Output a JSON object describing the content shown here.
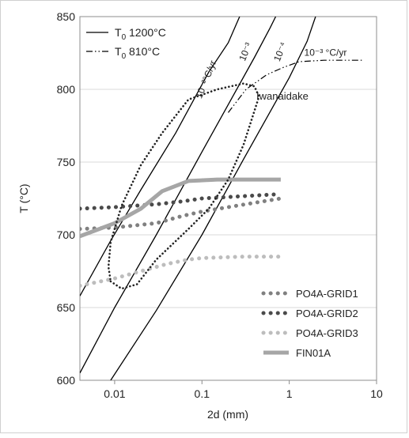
{
  "chart_data": {
    "type": "line",
    "xlabel": "2d (mm)",
    "ylabel": "T (°C)",
    "x_scale": "log",
    "xlim": [
      0.004,
      10
    ],
    "ylim": [
      600,
      850
    ],
    "x_ticks": [
      {
        "value": 0.01,
        "label": "0.01"
      },
      {
        "value": 0.1,
        "label": "0.1"
      },
      {
        "value": 1,
        "label": "1"
      },
      {
        "value": 10,
        "label": "10"
      }
    ],
    "y_ticks": [
      {
        "value": 600,
        "label": "600"
      },
      {
        "value": 650,
        "label": "650"
      },
      {
        "value": 700,
        "label": "700"
      },
      {
        "value": 750,
        "label": "750"
      },
      {
        "value": 800,
        "label": "800"
      },
      {
        "value": 850,
        "label": "850"
      }
    ],
    "grid": "y-major",
    "legend_top": [
      {
        "label_main": "T",
        "label_sub": "0",
        "label_rest": " 1200°C",
        "style": "solid"
      },
      {
        "label_main": "T",
        "label_sub": "0",
        "label_rest": " 810°C",
        "style": "dash-dot-dot"
      }
    ],
    "legend_bottom": [
      {
        "label": "PO4A-GRID1",
        "color": "#808080",
        "style": "dotted"
      },
      {
        "label": "PO4A-GRID2",
        "color": "#4a4a4a",
        "style": "dotted"
      },
      {
        "label": "PO4A-GRID3",
        "color": "#bdbdbd",
        "style": "dotted"
      },
      {
        "label": "FIN01A",
        "color": "#a6a6a6",
        "style": "thick"
      }
    ],
    "rate_labels": [
      {
        "text": "10⁻²°C/yr",
        "x": 0.12,
        "y": 806
      },
      {
        "text": "10⁻³",
        "x": 0.34,
        "y": 825
      },
      {
        "text": "10⁻⁴",
        "x": 0.85,
        "y": 825
      },
      {
        "text": "10⁻³ °C/yr",
        "x": 2.6,
        "y": 823
      }
    ],
    "annotation": {
      "text": "Iwanaidake",
      "x": 0.42,
      "y": 793
    },
    "series": [
      {
        "style": "solid",
        "points": [
          [
            0.004,
            658
          ],
          [
            0.009,
            696
          ],
          [
            0.02,
            731
          ],
          [
            0.05,
            770
          ],
          [
            0.12,
            812
          ],
          [
            0.2,
            832
          ],
          [
            0.27,
            850
          ]
        ]
      },
      {
        "style": "solid",
        "points": [
          [
            0.004,
            605
          ],
          [
            0.01,
            650
          ],
          [
            0.03,
            700
          ],
          [
            0.1,
            757
          ],
          [
            0.4,
            822
          ],
          [
            0.6,
            842
          ],
          [
            0.7,
            850
          ]
        ]
      },
      {
        "style": "solid",
        "points": [
          [
            0.009,
            600
          ],
          [
            0.03,
            648
          ],
          [
            0.1,
            700
          ],
          [
            0.3,
            752
          ],
          [
            1,
            808
          ],
          [
            1.6,
            833
          ],
          [
            2.0,
            850
          ]
        ]
      },
      {
        "style": "dash-dot-dot",
        "points": [
          [
            0.2,
            784
          ],
          [
            0.32,
            800
          ],
          [
            0.55,
            810
          ],
          [
            0.85,
            815
          ],
          [
            1.3,
            819
          ],
          [
            2.5,
            820
          ],
          [
            7,
            820
          ]
        ]
      },
      {
        "name": "PO4A-GRID1",
        "style": "dotted",
        "color": "#808080",
        "points": [
          [
            0.004,
            704
          ],
          [
            0.01,
            705
          ],
          [
            0.03,
            708
          ],
          [
            0.06,
            713
          ],
          [
            0.1,
            716
          ],
          [
            0.2,
            719
          ],
          [
            0.4,
            722
          ],
          [
            0.8,
            725
          ]
        ]
      },
      {
        "name": "PO4A-GRID2",
        "style": "dotted",
        "color": "#4a4a4a",
        "points": [
          [
            0.004,
            718
          ],
          [
            0.01,
            719
          ],
          [
            0.03,
            721
          ],
          [
            0.06,
            723
          ],
          [
            0.1,
            725
          ],
          [
            0.2,
            726
          ],
          [
            0.4,
            727
          ],
          [
            0.8,
            728
          ]
        ]
      },
      {
        "name": "PO4A-GRID3",
        "style": "dotted",
        "color": "#bdbdbd",
        "points": [
          [
            0.004,
            665
          ],
          [
            0.01,
            670
          ],
          [
            0.02,
            675
          ],
          [
            0.04,
            680
          ],
          [
            0.07,
            683
          ],
          [
            0.1,
            684
          ],
          [
            0.3,
            685
          ],
          [
            0.8,
            685
          ]
        ]
      },
      {
        "name": "FIN01A",
        "style": "thick",
        "color": "#a6a6a6",
        "points": [
          [
            0.004,
            699
          ],
          [
            0.01,
            708
          ],
          [
            0.02,
            718
          ],
          [
            0.035,
            730
          ],
          [
            0.07,
            737
          ],
          [
            0.15,
            738
          ],
          [
            0.8,
            738
          ]
        ]
      },
      {
        "name": "Iwanaidake",
        "style": "dotted-closed",
        "color": "#222222",
        "points": [
          [
            0.009,
            668
          ],
          [
            0.012,
            663
          ],
          [
            0.018,
            666
          ],
          [
            0.03,
            683
          ],
          [
            0.07,
            704
          ],
          [
            0.12,
            718
          ],
          [
            0.2,
            738
          ],
          [
            0.3,
            762
          ],
          [
            0.45,
            795
          ],
          [
            0.4,
            802
          ],
          [
            0.3,
            804
          ],
          [
            0.15,
            800
          ],
          [
            0.07,
            793
          ],
          [
            0.035,
            770
          ],
          [
            0.02,
            748
          ],
          [
            0.012,
            720
          ],
          [
            0.009,
            695
          ],
          [
            0.0085,
            678
          ]
        ]
      }
    ]
  }
}
